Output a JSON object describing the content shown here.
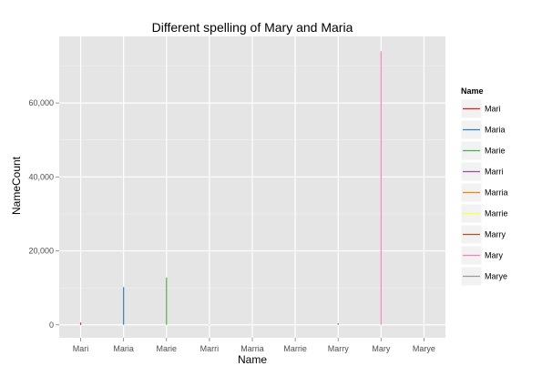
{
  "chart_data": {
    "type": "line",
    "title": "Different spelling of Mary and Maria",
    "xlabel": "Name",
    "ylabel": "NameCount",
    "categories": [
      "Mari",
      "Maria",
      "Marie",
      "Marri",
      "Marria",
      "Marrie",
      "Marry",
      "Mary",
      "Marye"
    ],
    "ylim": [
      -3500,
      78000
    ],
    "yticks": [
      0,
      20000,
      40000,
      60000
    ],
    "ytick_labels": [
      "0",
      "20,000",
      "40,000",
      "60,000"
    ],
    "grid": true,
    "legend": {
      "title": "Name",
      "position": "right"
    },
    "series": [
      {
        "name": "Mari",
        "color": "#E41A1C",
        "min": 0,
        "max": 600
      },
      {
        "name": "Maria",
        "color": "#377EB8",
        "min": 0,
        "max": 10200
      },
      {
        "name": "Marie",
        "color": "#4DAF4A",
        "min": 0,
        "max": 12800
      },
      {
        "name": "Marri",
        "color": "#984EA3",
        "min": 0,
        "max": 100
      },
      {
        "name": "Marria",
        "color": "#FF7F00",
        "min": 0,
        "max": 50
      },
      {
        "name": "Marrie",
        "color": "#FFFF33",
        "min": 0,
        "max": 60
      },
      {
        "name": "Marry",
        "color": "#A65628",
        "min": 0,
        "max": 400
      },
      {
        "name": "Mary",
        "color": "#F781BF",
        "min": 0,
        "max": 74000
      },
      {
        "name": "Marye",
        "color": "#999999",
        "min": 0,
        "max": 50
      }
    ]
  }
}
